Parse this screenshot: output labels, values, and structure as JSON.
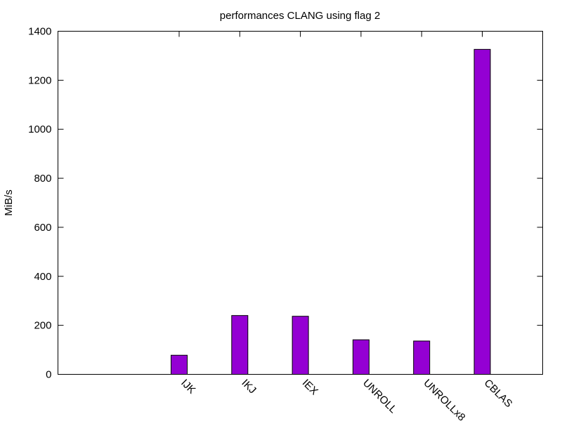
{
  "chart_data": {
    "type": "bar",
    "title": "performances CLANG using flag 2",
    "xlabel": "",
    "ylabel": "MiB/s",
    "categories": [
      "IJK",
      "IKJ",
      "IEX",
      "UNROLL",
      "UNROLLx8",
      "CBLAS"
    ],
    "values": [
      78,
      240,
      237,
      141,
      136,
      1326
    ],
    "ylim": [
      0,
      1400
    ],
    "yticks": [
      0,
      200,
      400,
      600,
      800,
      1000,
      1200,
      1400
    ],
    "grid": false,
    "bar_color": "#9400d3",
    "edge_color": "#000000"
  }
}
